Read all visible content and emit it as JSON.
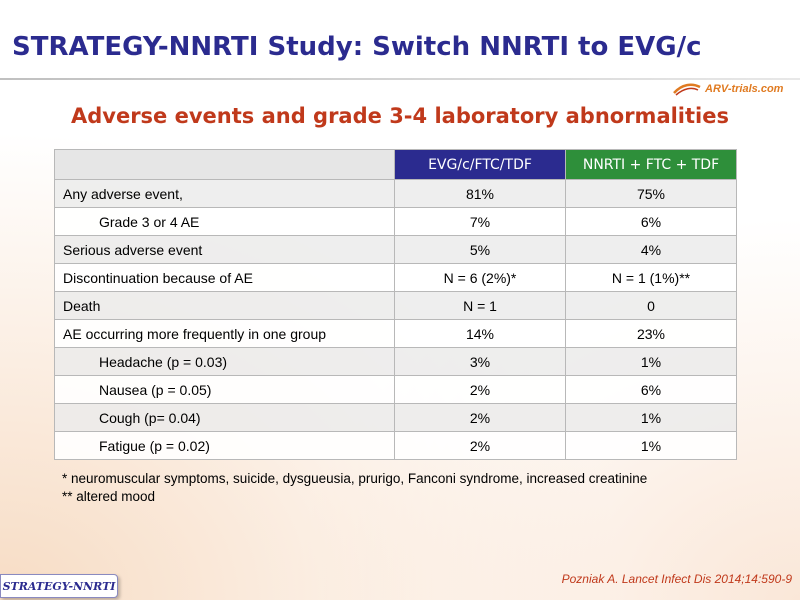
{
  "slide": {
    "title": "STRATEGY-NNRTI Study: Switch NNRTI to EVG/c",
    "subtitle": "Adverse events and grade 3-4 laboratory abnormalities",
    "logo_text": "ARV-trials.com"
  },
  "table": {
    "columns": [
      "EVG/c/FTC/TDF",
      "NNRTI + FTC + TDF"
    ],
    "column_colors": [
      "#2b2b8f",
      "#2e8f3a"
    ],
    "rows": [
      {
        "label": "Any adverse event,",
        "evg": "81%",
        "nnrti": "75%"
      },
      {
        "label": "Grade 3 or 4 AE",
        "evg": "7%",
        "nnrti": "6%"
      },
      {
        "label": "Serious adverse event",
        "evg": "5%",
        "nnrti": "4%"
      },
      {
        "label": "Discontinuation because of AE",
        "evg": "N = 6 (2%)*",
        "nnrti": "N = 1 (1%)**"
      },
      {
        "label": "Death",
        "evg": "N = 1",
        "nnrti": "0"
      },
      {
        "label": "AE occurring more frequently in one group",
        "evg": "14%",
        "nnrti": "23%"
      },
      {
        "label": "Headache (p = 0.03)",
        "evg": "3%",
        "nnrti": "1%"
      },
      {
        "label": "Nausea (p = 0.05)",
        "evg": "2%",
        "nnrti": "6%"
      },
      {
        "label": "Cough (p= 0.04)",
        "evg": "2%",
        "nnrti": "1%"
      },
      {
        "label": "Fatigue (p = 0.02)",
        "evg": "2%",
        "nnrti": "1%"
      }
    ]
  },
  "footnotes": [
    "* neuromuscular symptoms, suicide, dysgueusia, prurigo, Fanconi syndrome, increased creatinine",
    "** altered mood"
  ],
  "citation": "Pozniak A. Lancet Infect Dis 2014;14:590-9",
  "study_badge": "STRATEGY-NNRTI",
  "colors": {
    "title": "#2b2b8f",
    "subtitle": "#c0391b",
    "logo": "#e07b22"
  }
}
